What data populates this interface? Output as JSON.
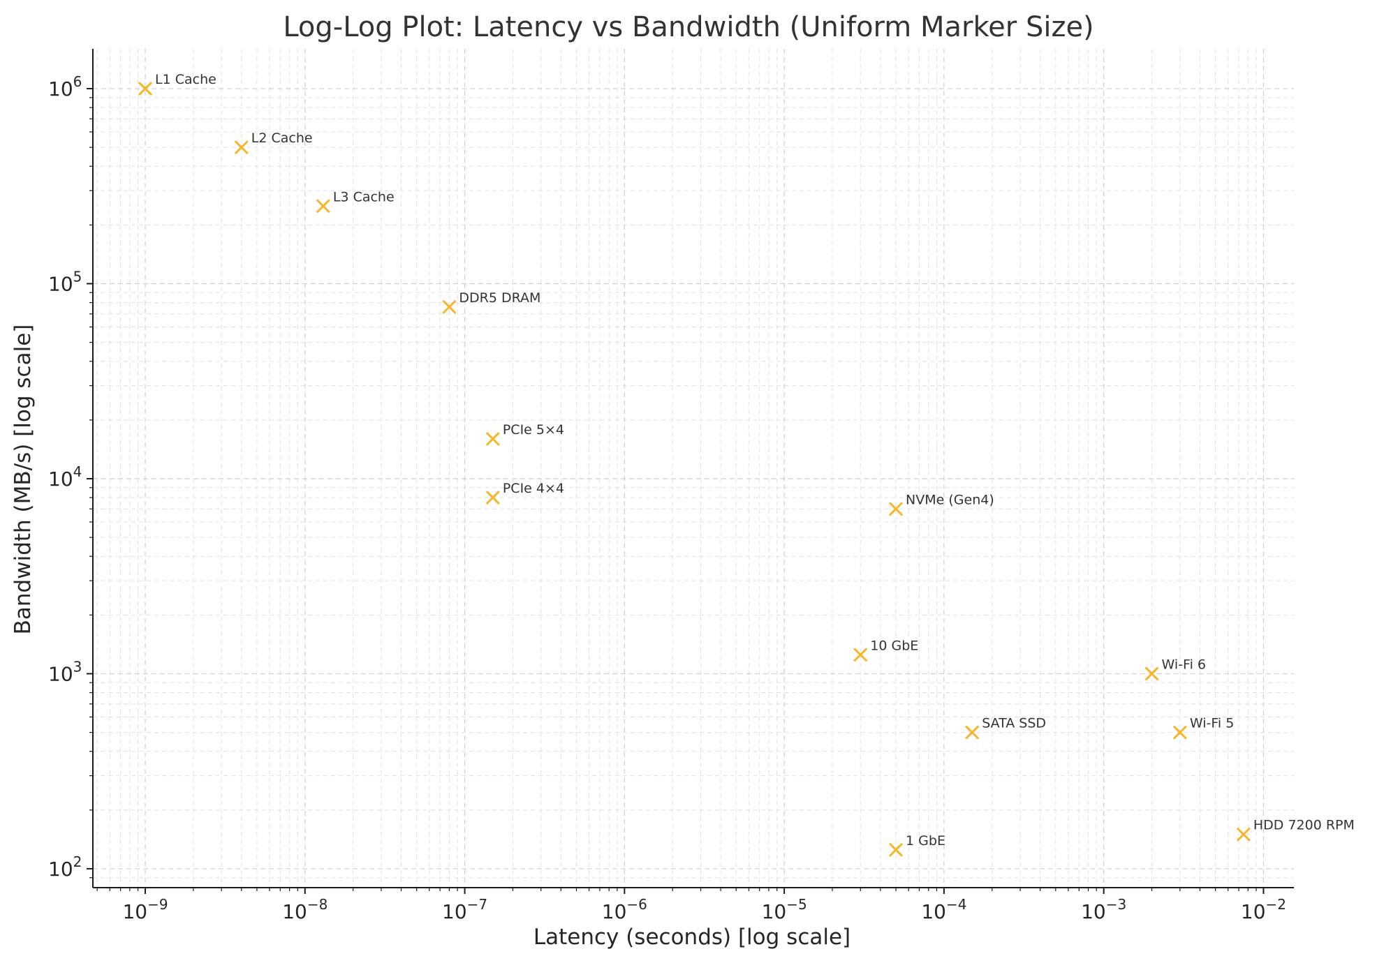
{
  "chart_data": {
    "type": "scatter",
    "title": "Log-Log Plot: Latency vs Bandwidth (Uniform Marker Size)",
    "xlabel": "Latency (seconds) [log scale]",
    "ylabel": "Bandwidth (MB/s) [log scale]",
    "xscale": "log",
    "yscale": "log",
    "xlim": [
      4.7e-10,
      0.0155
    ],
    "ylim": [
      80,
      1600000
    ],
    "grid": true,
    "marker": "x",
    "marker_color": "#F7B52C",
    "x_ticks": [
      {
        "value": 1e-09,
        "base": "10",
        "exp": "−9"
      },
      {
        "value": 1e-08,
        "base": "10",
        "exp": "−8"
      },
      {
        "value": 1e-07,
        "base": "10",
        "exp": "−7"
      },
      {
        "value": 1e-06,
        "base": "10",
        "exp": "−6"
      },
      {
        "value": 1e-05,
        "base": "10",
        "exp": "−5"
      },
      {
        "value": 0.0001,
        "base": "10",
        "exp": "−4"
      },
      {
        "value": 0.001,
        "base": "10",
        "exp": "−3"
      },
      {
        "value": 0.01,
        "base": "10",
        "exp": "−2"
      }
    ],
    "y_ticks": [
      {
        "value": 100,
        "base": "10",
        "exp": "2"
      },
      {
        "value": 1000,
        "base": "10",
        "exp": "3"
      },
      {
        "value": 10000,
        "base": "10",
        "exp": "4"
      },
      {
        "value": 100000,
        "base": "10",
        "exp": "5"
      },
      {
        "value": 1000000,
        "base": "10",
        "exp": "6"
      }
    ],
    "points": [
      {
        "label": "L1 Cache",
        "x": 1e-09,
        "y": 1000000
      },
      {
        "label": "L2 Cache",
        "x": 4e-09,
        "y": 500000
      },
      {
        "label": "L3 Cache",
        "x": 1.3e-08,
        "y": 250000
      },
      {
        "label": "DDR5 DRAM",
        "x": 8e-08,
        "y": 76000
      },
      {
        "label": "PCIe 5×4",
        "x": 1.5e-07,
        "y": 16000
      },
      {
        "label": "PCIe 4×4",
        "x": 1.5e-07,
        "y": 8000
      },
      {
        "label": "NVMe (Gen4)",
        "x": 5e-05,
        "y": 7000
      },
      {
        "label": "10 GbE",
        "x": 3e-05,
        "y": 1250
      },
      {
        "label": "Wi-Fi 6",
        "x": 0.002,
        "y": 1000
      },
      {
        "label": "SATA SSD",
        "x": 0.00015,
        "y": 500
      },
      {
        "label": "Wi-Fi 5",
        "x": 0.003,
        "y": 500
      },
      {
        "label": "HDD 7200 RPM",
        "x": 0.0075,
        "y": 150
      },
      {
        "label": "1 GbE",
        "x": 5e-05,
        "y": 125
      }
    ]
  }
}
